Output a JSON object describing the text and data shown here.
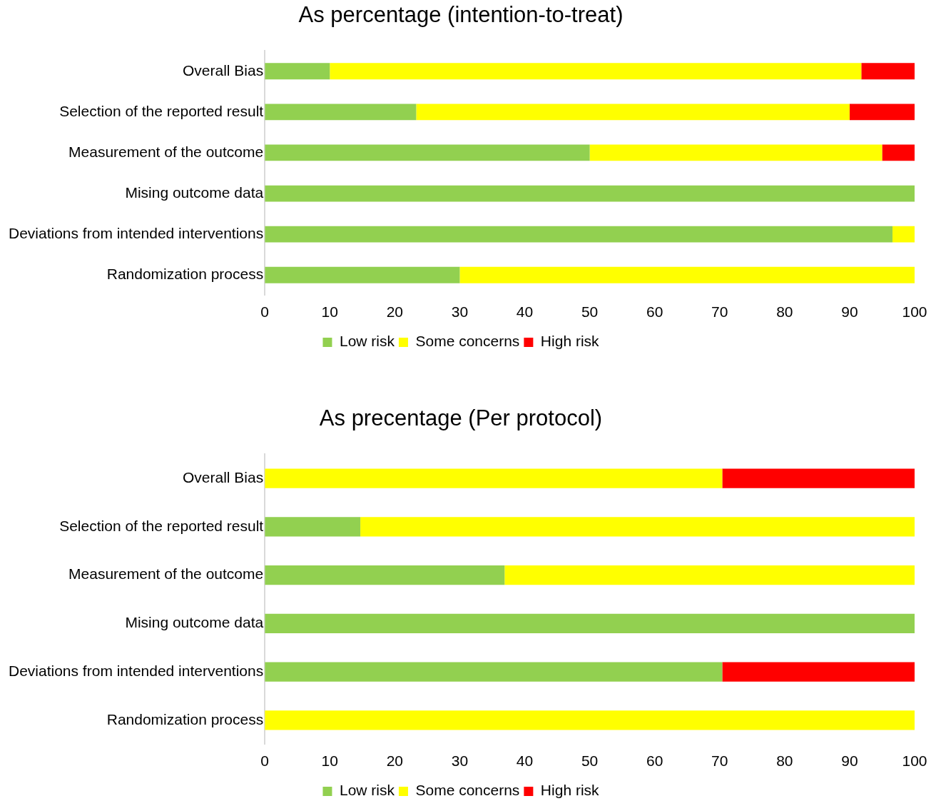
{
  "chart_data": [
    {
      "type": "bar",
      "title": "As percentage (intention-to-treat)",
      "orientation": "horizontal",
      "stacked": true,
      "categories": [
        "Overall Bias",
        "Selection of the reported result",
        "Measurement of the outcome",
        "Mising outcome data",
        "Deviations from intended interventions",
        "Randomization process"
      ],
      "series": [
        {
          "name": "Low risk",
          "color": "#92d050",
          "values": [
            10,
            23.3,
            50,
            100,
            96.6,
            30
          ]
        },
        {
          "name": "Some concerns",
          "color": "#ffff00",
          "values": [
            81.8,
            66.7,
            45,
            0,
            3.4,
            70
          ]
        },
        {
          "name": "High risk",
          "color": "#ff0000",
          "values": [
            8.2,
            10,
            5,
            0,
            0,
            0
          ]
        }
      ],
      "xlim": [
        0,
        100
      ],
      "xticks": [
        0,
        10,
        20,
        30,
        40,
        50,
        60,
        70,
        80,
        90,
        100
      ],
      "grid": false,
      "legend": "bottom"
    },
    {
      "type": "bar",
      "title": "As precentage (Per protocol)",
      "orientation": "horizontal",
      "stacked": true,
      "categories": [
        "Overall Bias",
        "Selection of the reported result",
        "Measurement of the outcome",
        "Mising outcome data",
        "Deviations from intended interventions",
        "Randomization process"
      ],
      "series": [
        {
          "name": "Low risk",
          "color": "#92d050",
          "values": [
            0,
            14.7,
            36.9,
            100,
            70.4,
            0
          ]
        },
        {
          "name": "Some concerns",
          "color": "#ffff00",
          "values": [
            70.4,
            85.3,
            63.1,
            0,
            0,
            100
          ]
        },
        {
          "name": "High risk",
          "color": "#ff0000",
          "values": [
            29.6,
            0,
            0,
            0,
            29.6,
            0
          ]
        }
      ],
      "xlim": [
        0,
        100
      ],
      "xticks": [
        0,
        10,
        20,
        30,
        40,
        50,
        60,
        70,
        80,
        90,
        100
      ],
      "grid": false,
      "legend": "bottom"
    }
  ]
}
